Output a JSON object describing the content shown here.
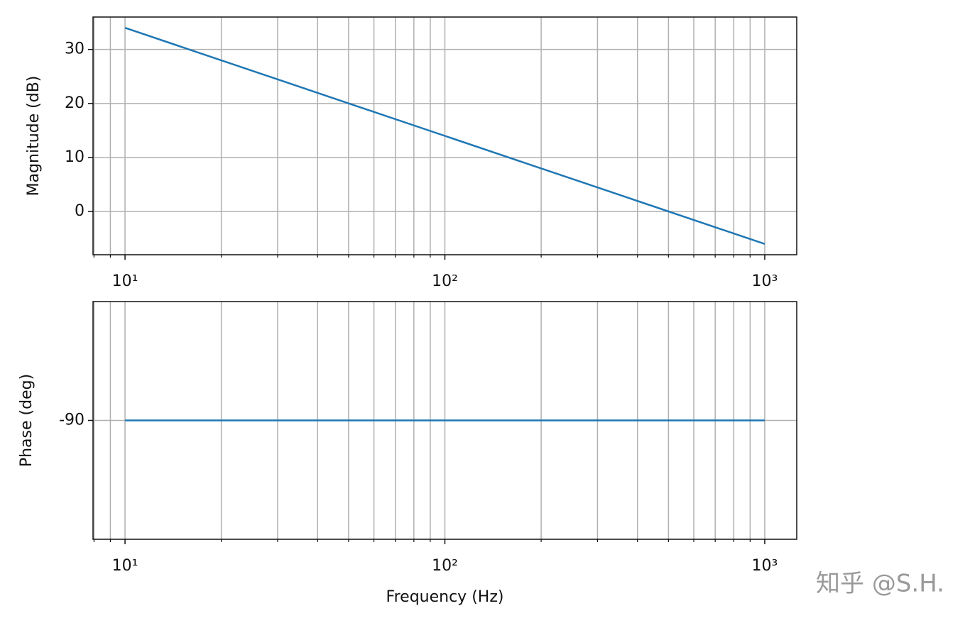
{
  "chart_data": [
    {
      "type": "line",
      "x": [
        10,
        100,
        1000
      ],
      "values": [
        34,
        14,
        -6
      ],
      "color": "#1f77b4",
      "xlim": [
        7.943,
        1258.9
      ],
      "ylim": [
        -8,
        36
      ],
      "log_x": true,
      "grid": true,
      "xticks": [
        {
          "value": 10,
          "label": "10¹"
        },
        {
          "value": 100,
          "label": "10²"
        },
        {
          "value": 1000,
          "label": "10³"
        }
      ],
      "xminorticks": [
        8,
        9,
        20,
        30,
        40,
        50,
        60,
        70,
        80,
        90,
        200,
        300,
        400,
        500,
        600,
        700,
        800,
        900
      ],
      "yticks": [
        0,
        10,
        20,
        30
      ],
      "ylabel": "Magnitude (dB)"
    },
    {
      "type": "line",
      "x": [
        10,
        100,
        1000
      ],
      "values": [
        -90,
        -90,
        -90
      ],
      "color": "#1f77b4",
      "xlim": [
        7.943,
        1258.9
      ],
      "ylim": [
        -94.5,
        -85.5
      ],
      "log_x": true,
      "grid": true,
      "xticks": [
        {
          "value": 10,
          "label": "10¹"
        },
        {
          "value": 100,
          "label": "10²"
        },
        {
          "value": 1000,
          "label": "10³"
        }
      ],
      "xminorticks": [
        8,
        9,
        20,
        30,
        40,
        50,
        60,
        70,
        80,
        90,
        200,
        300,
        400,
        500,
        600,
        700,
        800,
        900
      ],
      "yticks": [
        -90
      ],
      "ylabel": "Phase (deg)",
      "xlabel": "Frequency (Hz)"
    }
  ],
  "watermark": "知乎 @S.H."
}
